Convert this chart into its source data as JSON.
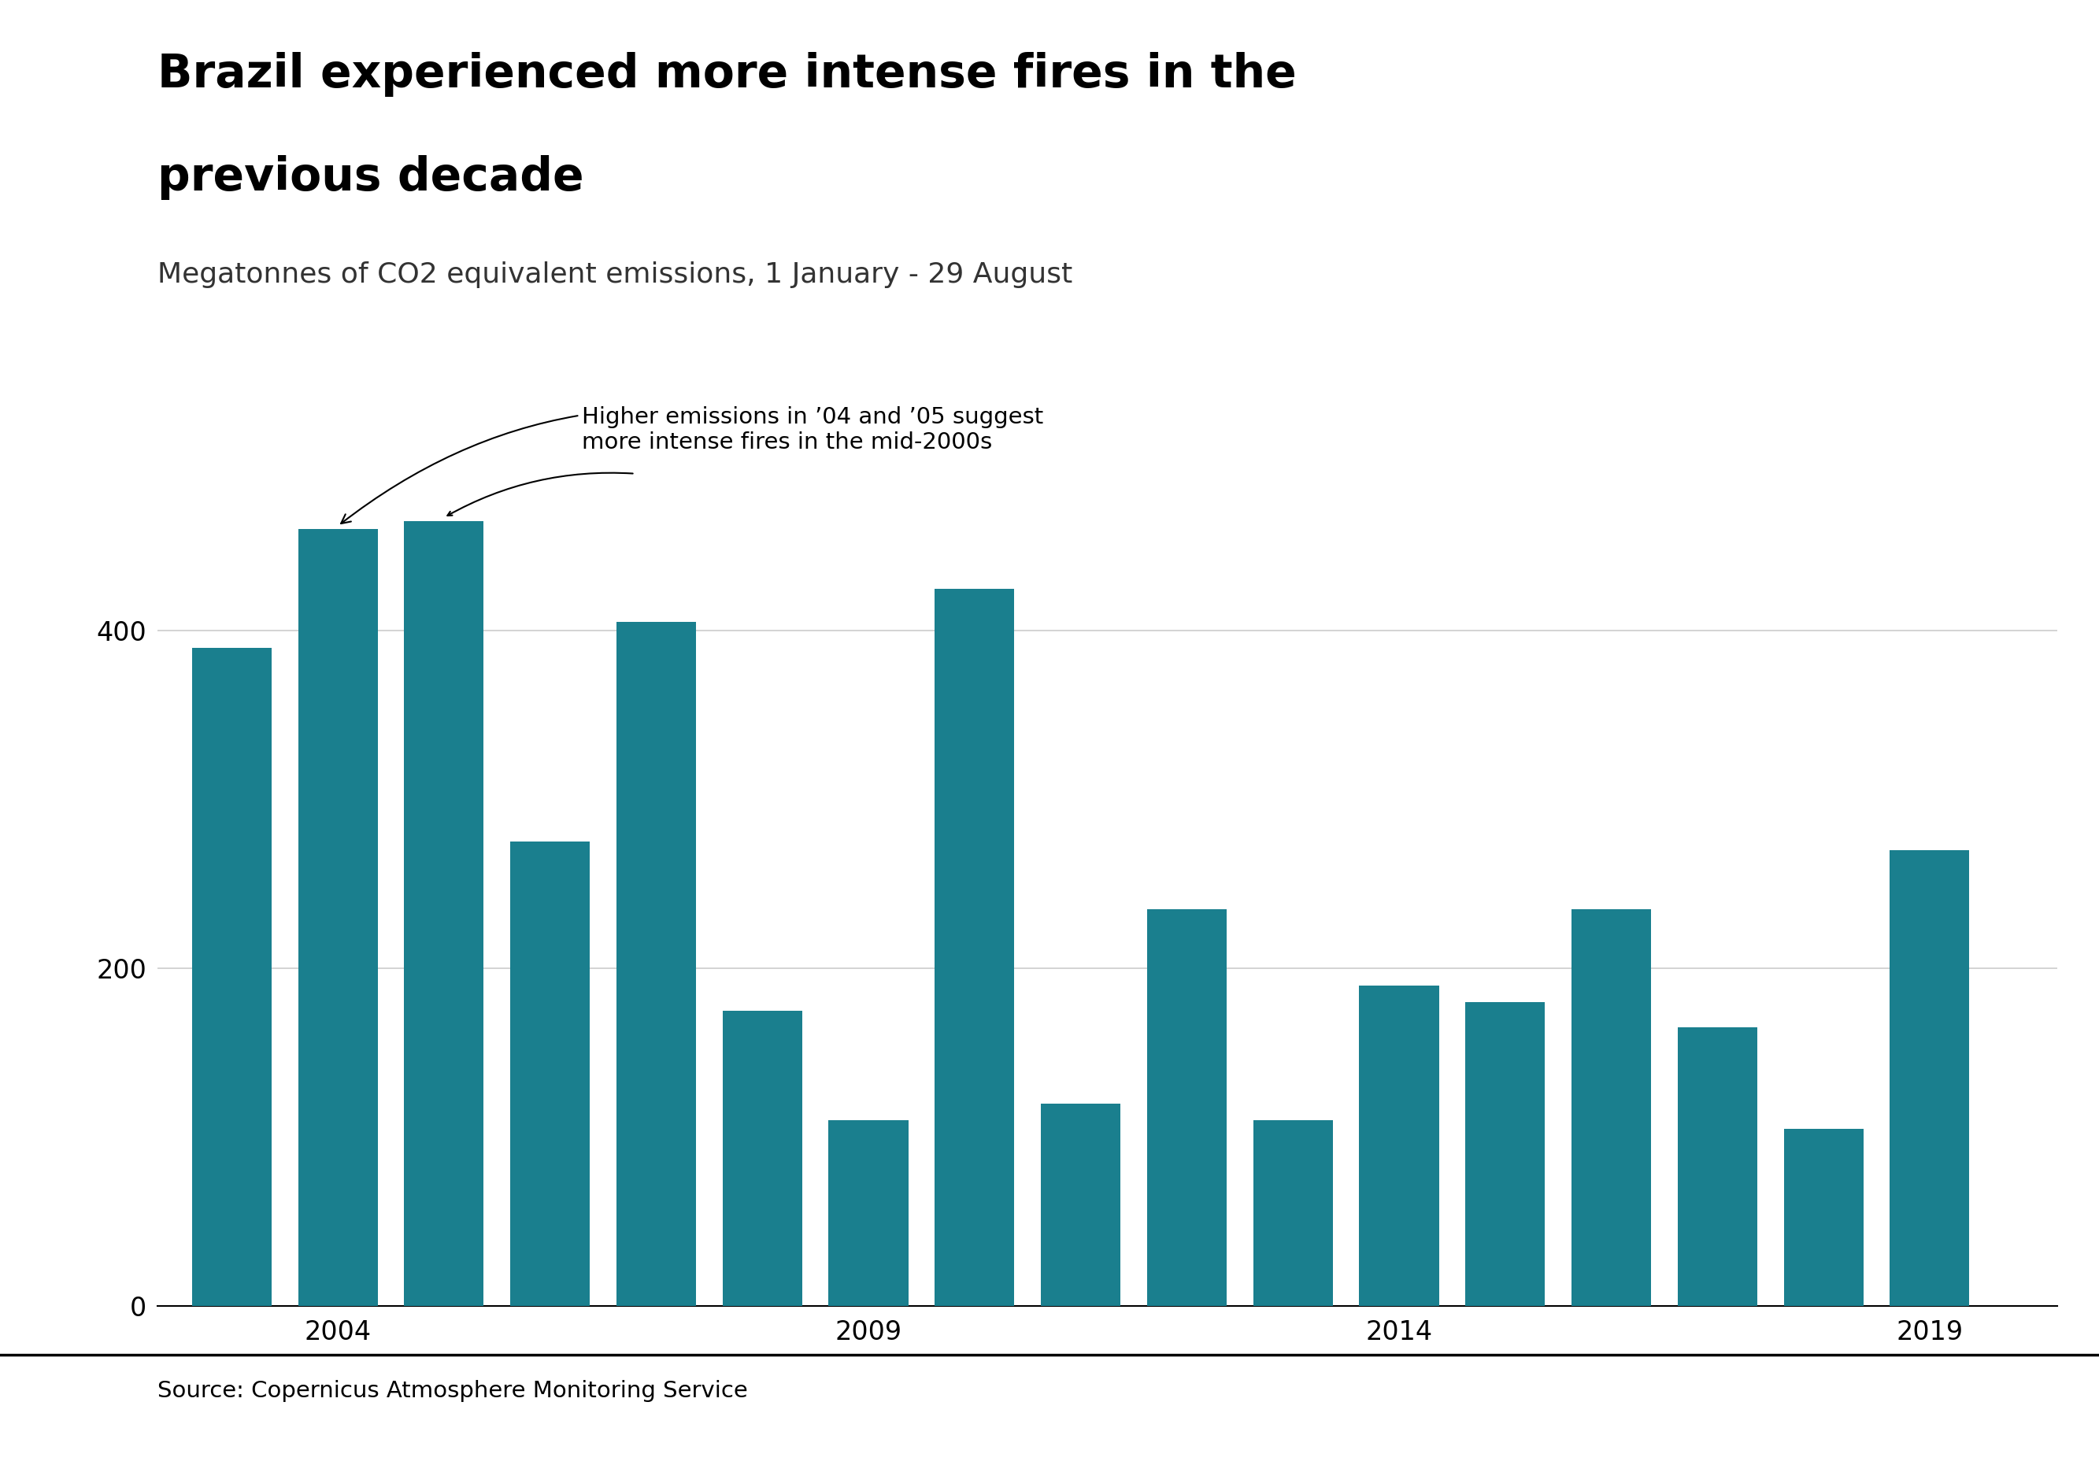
{
  "years": [
    2003,
    2004,
    2005,
    2006,
    2007,
    2008,
    2009,
    2010,
    2011,
    2012,
    2013,
    2014,
    2015,
    2016,
    2017,
    2018,
    2019
  ],
  "values": [
    390,
    460,
    465,
    275,
    405,
    175,
    110,
    425,
    120,
    235,
    110,
    190,
    180,
    235,
    165,
    105,
    270
  ],
  "bar_color": "#1a7f8e",
  "title_line1": "Brazil experienced more intense fires in the",
  "title_line2": "previous decade",
  "subtitle": "Megatonnes of CO2 equivalent emissions, 1 January - 29 August",
  "source": "Source: Copernicus Atmosphere Monitoring Service",
  "annotation_text": "Higher emissions in ’04 and ’05 suggest\nmore intense fires in the mid-2000s",
  "yticks": [
    0,
    200,
    400
  ],
  "xtick_years": [
    2004,
    2009,
    2014,
    2019
  ],
  "ylim": [
    0,
    520
  ],
  "background_color": "#ffffff",
  "title_fontsize": 42,
  "subtitle_fontsize": 26,
  "source_fontsize": 21,
  "tick_fontsize": 24,
  "annotation_fontsize": 21,
  "bar_width": 0.75
}
